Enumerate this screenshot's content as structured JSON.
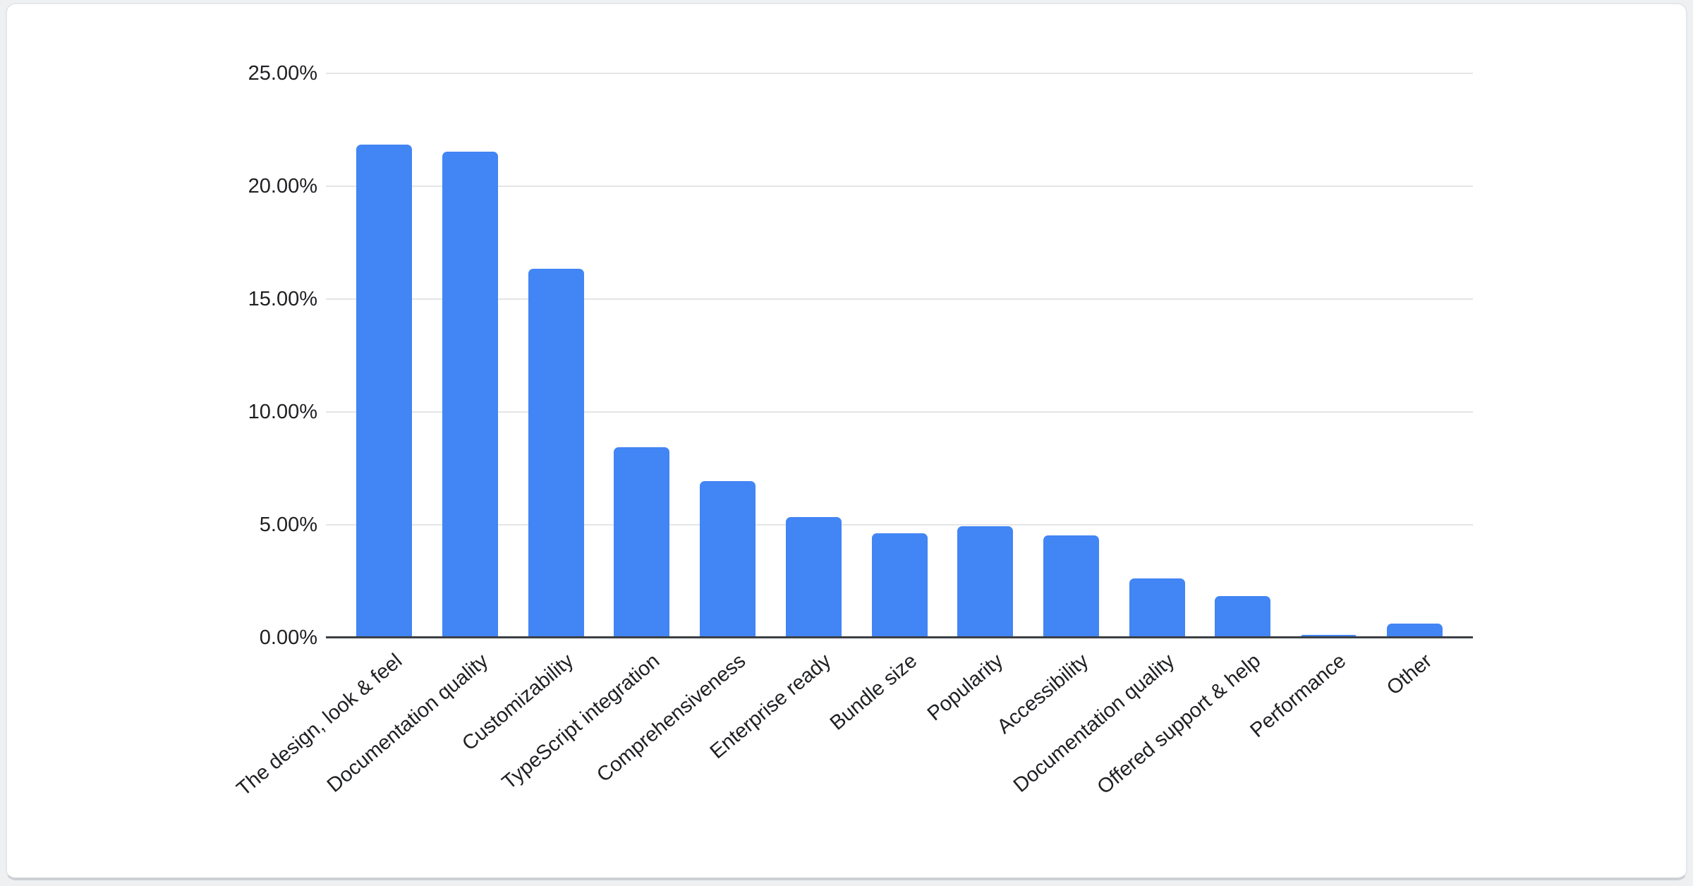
{
  "page": {
    "background_color": "#eef0f2",
    "card_background": "#ffffff",
    "card_border_color": "#e4e7ea"
  },
  "chart_data": {
    "type": "bar",
    "title": "",
    "xlabel": "",
    "ylabel": "",
    "categories": [
      "The design, look & feel",
      "Documentation quality",
      "Customizability",
      "TypeScript integration",
      "Comprehensiveness",
      "Enterprise ready",
      "Bundle size",
      "Popularity",
      "Accessibility",
      "Documentation quality",
      "Offered support & help",
      "Performance",
      "Other"
    ],
    "values": [
      21.8,
      21.5,
      16.3,
      8.4,
      6.9,
      5.3,
      4.6,
      4.9,
      4.5,
      2.6,
      1.8,
      0.1,
      0.6
    ],
    "value_unit": "%",
    "bar_color": "#4285f4",
    "axis_text_color": "#1f2023",
    "gridline_color": "#e4e5e6",
    "baseline_color": "#3c4043",
    "ylim": [
      0,
      25
    ],
    "ytick_values": [
      0,
      5,
      10,
      15,
      20,
      25
    ],
    "ytick_labels": [
      "0.00%",
      "5.00%",
      "10.00%",
      "15.00%",
      "20.00%",
      "25.00%"
    ],
    "grid": true,
    "legend": false,
    "x_label_rotation_deg": -40
  }
}
